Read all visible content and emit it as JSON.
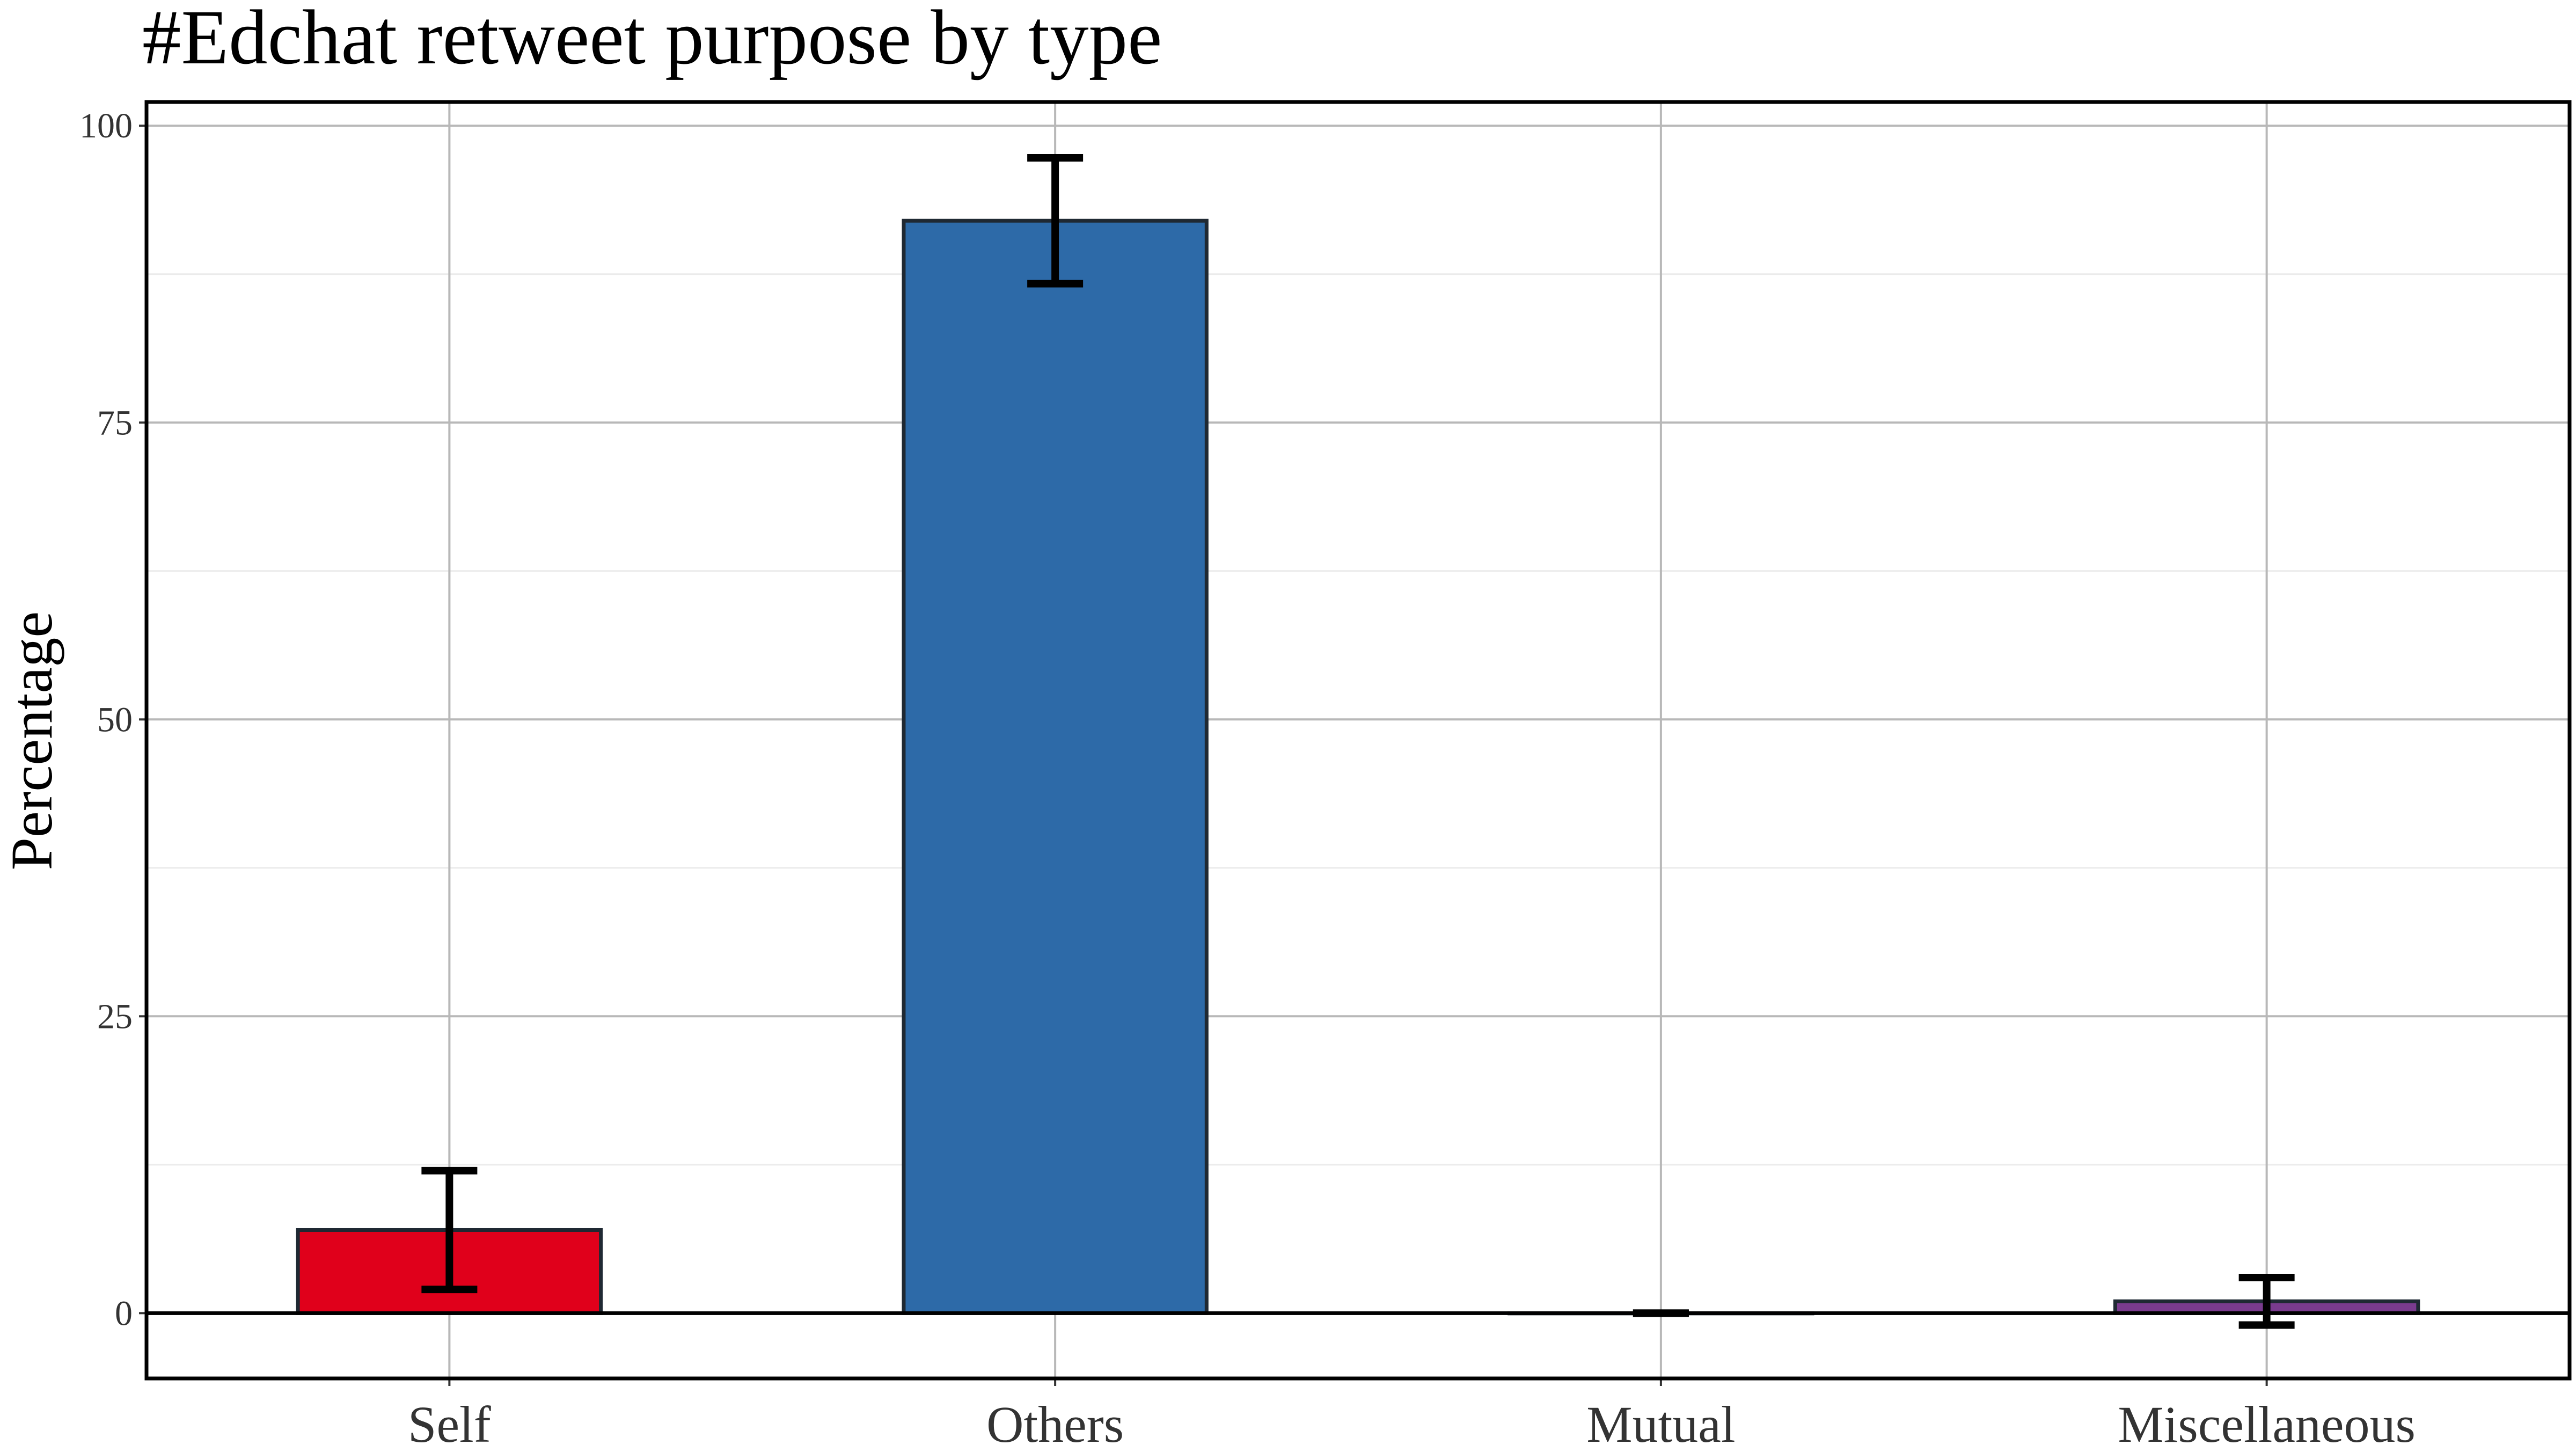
{
  "chart_data": {
    "type": "bar",
    "title": "#Edchat retweet purpose by type",
    "xlabel": "",
    "ylabel": "Percentage",
    "categories": [
      "Self",
      "Others",
      "Mutual",
      "Miscellaneous"
    ],
    "values": [
      7,
      92,
      0,
      1
    ],
    "error_low": [
      2,
      86.7,
      0,
      -1
    ],
    "error_high": [
      12,
      97.3,
      0,
      3
    ],
    "colors": [
      "#e0001b",
      "#2d6aa8",
      "#7a3b8e",
      "#7a3b8e"
    ],
    "ylim": [
      -5.5,
      102
    ],
    "yticks": [
      0,
      25,
      50,
      75,
      100
    ],
    "grid": true,
    "legend": "none"
  }
}
